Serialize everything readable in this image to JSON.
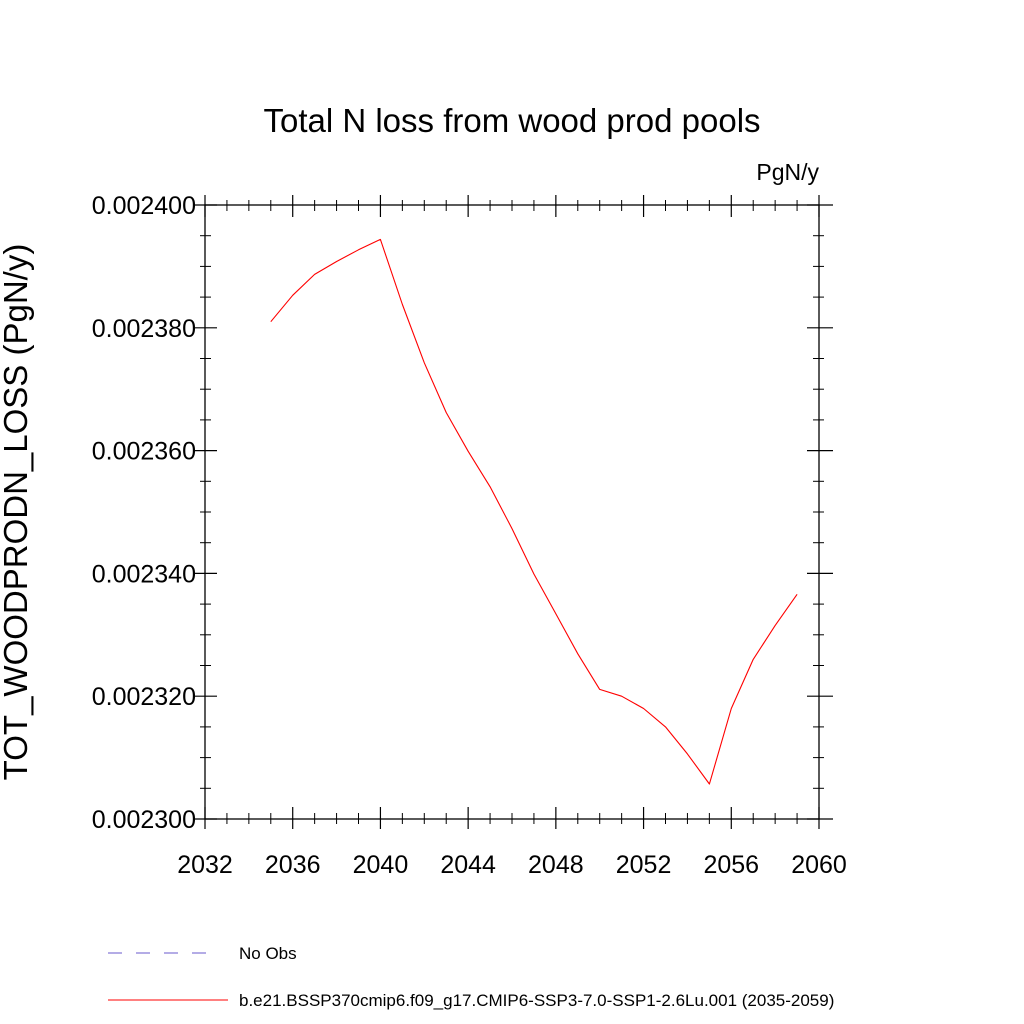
{
  "chart_data": {
    "type": "line",
    "title": "Total N loss from wood prod pools",
    "units_label": "PgN/y",
    "xlabel": "",
    "ylabel": "TOT_WOODPRODN_LOSS  (PgN/y)",
    "xlim": [
      2032,
      2060
    ],
    "ylim": [
      0.0023,
      0.0024
    ],
    "x_ticks": [
      2032,
      2036,
      2040,
      2044,
      2048,
      2052,
      2056,
      2060
    ],
    "y_ticks": [
      0.0023,
      0.00232,
      0.00234,
      0.00236,
      0.00238,
      0.0024
    ],
    "y_tick_labels": [
      "0.002300",
      "0.002320",
      "0.002340",
      "0.002360",
      "0.002380",
      "0.002400"
    ],
    "grid": false,
    "series": [
      {
        "name": "b.e21.BSSP370cmip6.f09_g17.CMIP6-SSP3-7.0-SSP1-2.6Lu.001 (2035-2059)",
        "color": "#ff0000",
        "x": [
          2035,
          2036,
          2037,
          2038,
          2039,
          2040,
          2041,
          2042,
          2043,
          2044,
          2045,
          2046,
          2047,
          2048,
          2049,
          2050,
          2051,
          2052,
          2053,
          2054,
          2055,
          2056,
          2057,
          2058,
          2059
        ],
        "y": [
          0.002381,
          0.0023853,
          0.0023887,
          0.0023908,
          0.0023927,
          0.0023944,
          0.0023838,
          0.0023743,
          0.0023662,
          0.0023599,
          0.0023541,
          0.0023473,
          0.0023399,
          0.0023334,
          0.0023269,
          0.0023211,
          0.00232,
          0.002318,
          0.002315,
          0.0023106,
          0.0023057,
          0.002318,
          0.002326,
          0.0023315,
          0.0023366
        ]
      }
    ],
    "legend": [
      {
        "label": "No Obs",
        "color": "#6a5acd",
        "style": "dashed"
      },
      {
        "label": "b.e21.BSSP370cmip6.f09_g17.CMIP6-SSP3-7.0-SSP1-2.6Lu.001 (2035-2059)",
        "color": "#ff0000",
        "style": "solid"
      }
    ],
    "legend_position": "bottom"
  }
}
